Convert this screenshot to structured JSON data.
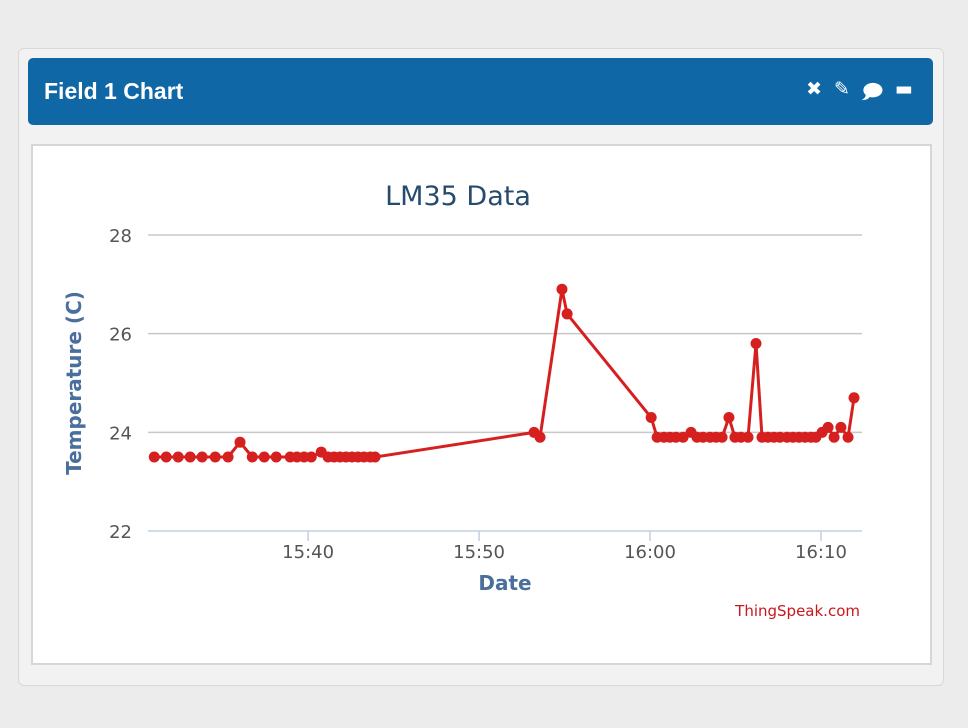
{
  "header": {
    "title": "Field 1 Chart",
    "icons": [
      "close-icon",
      "edit-icon",
      "comment-icon",
      "minimize-icon"
    ]
  },
  "credit": "ThingSpeak.com",
  "colors": {
    "series": "#d62020",
    "header": "#0f67a6",
    "axis_label": "#4a6f9c",
    "title": "#274b6d"
  },
  "chart_data": {
    "type": "line",
    "title": "LM35 Data",
    "xlabel": "Date",
    "ylabel": "Temperature (C)",
    "xlim": [
      "15:30:38",
      "16:12:24"
    ],
    "ylim": [
      22,
      28
    ],
    "yticks": [
      22,
      24,
      26,
      28
    ],
    "xticks": [
      "15:40",
      "15:50",
      "16:00",
      "16:10"
    ],
    "grid": true,
    "markers": true,
    "points": [
      [
        "15:31:00",
        23.5
      ],
      [
        "15:31:42",
        23.5
      ],
      [
        "15:32:24",
        23.5
      ],
      [
        "15:33:06",
        23.5
      ],
      [
        "15:33:48",
        23.5
      ],
      [
        "15:34:34",
        23.5
      ],
      [
        "15:35:19",
        23.5
      ],
      [
        "15:36:01",
        23.8
      ],
      [
        "15:36:44",
        23.5
      ],
      [
        "15:37:26",
        23.5
      ],
      [
        "15:38:08",
        23.5
      ],
      [
        "15:38:57",
        23.5
      ],
      [
        "15:39:21",
        23.5
      ],
      [
        "15:39:46",
        23.5
      ],
      [
        "15:40:11",
        23.5
      ],
      [
        "15:40:46",
        23.6
      ],
      [
        "15:41:10",
        23.5
      ],
      [
        "15:41:31",
        23.5
      ],
      [
        "15:41:52",
        23.5
      ],
      [
        "15:42:13",
        23.5
      ],
      [
        "15:42:34",
        23.5
      ],
      [
        "15:42:55",
        23.5
      ],
      [
        "15:43:16",
        23.5
      ],
      [
        "15:43:38",
        23.5
      ],
      [
        "15:43:55",
        23.5
      ],
      [
        "15:53:13",
        24.0
      ],
      [
        "15:53:34",
        23.9
      ],
      [
        "15:54:51",
        26.9
      ],
      [
        "15:55:09",
        26.4
      ],
      [
        "16:00:04",
        24.3
      ],
      [
        "16:00:25",
        23.9
      ],
      [
        "16:00:49",
        23.9
      ],
      [
        "16:01:10",
        23.9
      ],
      [
        "16:01:31",
        23.9
      ],
      [
        "16:01:56",
        23.9
      ],
      [
        "16:02:24",
        24.0
      ],
      [
        "16:02:45",
        23.9
      ],
      [
        "16:03:06",
        23.9
      ],
      [
        "16:03:31",
        23.9
      ],
      [
        "16:03:52",
        23.9
      ],
      [
        "16:04:13",
        23.9
      ],
      [
        "16:04:37",
        24.3
      ],
      [
        "16:04:58",
        23.9
      ],
      [
        "16:05:19",
        23.9
      ],
      [
        "16:05:44",
        23.9
      ],
      [
        "16:06:12",
        25.8
      ],
      [
        "16:06:33",
        23.9
      ],
      [
        "16:06:54",
        23.9
      ],
      [
        "16:07:15",
        23.9
      ],
      [
        "16:07:36",
        23.9
      ],
      [
        "16:08:01",
        23.9
      ],
      [
        "16:08:22",
        23.9
      ],
      [
        "16:08:43",
        23.9
      ],
      [
        "16:09:04",
        23.9
      ],
      [
        "16:09:25",
        23.9
      ],
      [
        "16:09:42",
        23.9
      ],
      [
        "16:10:04",
        24.0
      ],
      [
        "16:10:25",
        24.1
      ],
      [
        "16:10:46",
        23.9
      ],
      [
        "16:11:10",
        24.1
      ],
      [
        "16:11:35",
        23.9
      ],
      [
        "16:11:56",
        24.7
      ]
    ]
  }
}
